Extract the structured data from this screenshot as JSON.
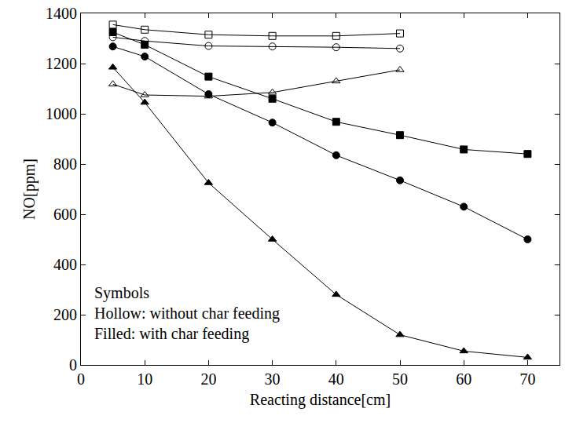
{
  "chart_data": {
    "type": "line",
    "x_label": "Reacting distance[cm]",
    "y_label": "NO[ppm]",
    "xlim": [
      0,
      75
    ],
    "xticks": [
      0,
      10,
      20,
      30,
      40,
      50,
      60,
      70
    ],
    "ylim": [
      0,
      1400
    ],
    "yticks": [
      0,
      200,
      400,
      600,
      800,
      1000,
      1200,
      1400
    ],
    "grid": false,
    "annotations": [
      {
        "lines": [
          "Symbols",
          "Hollow: without char feeding",
          "Filled: with char feeding"
        ]
      }
    ],
    "series": [
      {
        "color": "#000000",
        "marker": "square-open",
        "line_style": "solid",
        "x": [
          5,
          10,
          20,
          30,
          40,
          50
        ],
        "values": [
          1355,
          1335,
          1315,
          1310,
          1310,
          1320
        ]
      },
      {
        "color": "#000000",
        "marker": "circle-open",
        "line_style": "solid",
        "x": [
          5,
          10,
          20,
          30,
          40,
          50
        ],
        "values": [
          1305,
          1290,
          1270,
          1268,
          1265,
          1260
        ]
      },
      {
        "color": "#000000",
        "marker": "triangle-up-open",
        "line_style": "solid",
        "x": [
          5,
          10,
          20,
          30,
          40,
          50
        ],
        "values": [
          1118,
          1075,
          1070,
          1085,
          1130,
          1175
        ]
      },
      {
        "color": "#000000",
        "marker": "square",
        "line_style": "solid",
        "x": [
          5,
          10,
          20,
          30,
          40,
          50,
          60,
          70
        ],
        "values": [
          1325,
          1275,
          1148,
          1060,
          968,
          915,
          858,
          840
        ]
      },
      {
        "color": "#000000",
        "marker": "circle",
        "line_style": "solid",
        "x": [
          5,
          10,
          20,
          30,
          40,
          50,
          60,
          70
        ],
        "values": [
          1268,
          1228,
          1078,
          965,
          835,
          735,
          630,
          500
        ]
      },
      {
        "color": "#000000",
        "marker": "triangle-up",
        "line_style": "solid",
        "x": [
          5,
          10,
          20,
          30,
          40,
          50,
          60,
          70
        ],
        "values": [
          1185,
          1045,
          725,
          500,
          280,
          120,
          55,
          30
        ]
      }
    ]
  }
}
